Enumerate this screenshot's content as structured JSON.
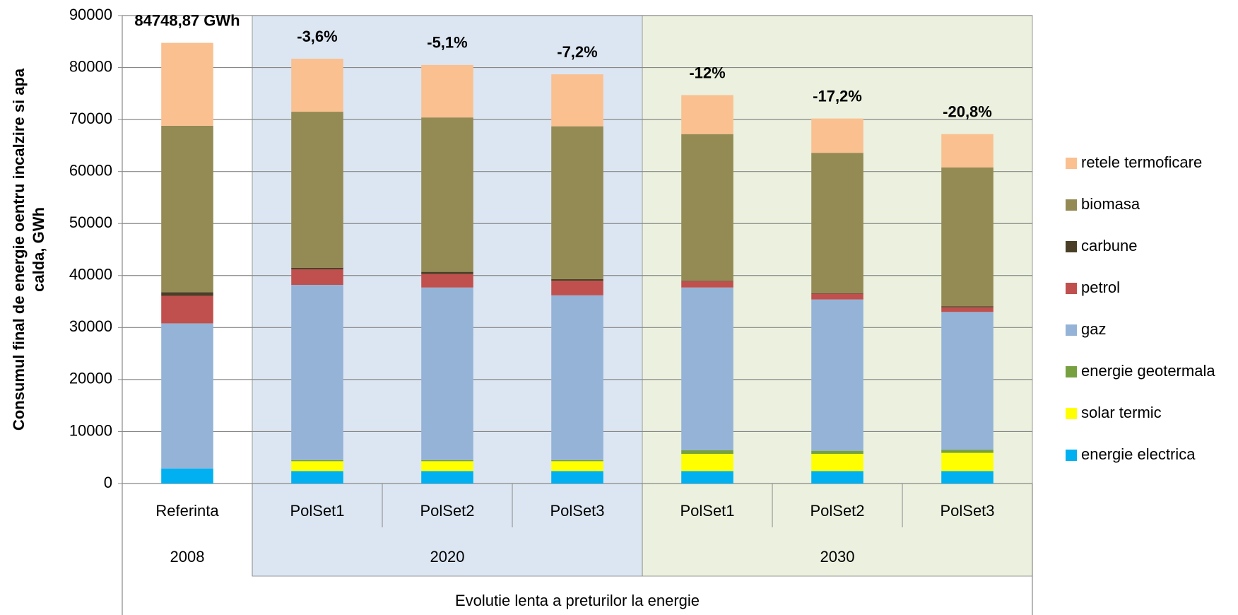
{
  "chart_data": {
    "type": "stacked_bar",
    "ylabel": [
      "Consumul final de energie oentru incalzire si apa",
      "calda, GWh"
    ],
    "xlabel": "Evolutie lenta a preturilor la energie",
    "categories": [
      "Referinta",
      "PolSet1",
      "PolSet2",
      "PolSet3",
      "PolSet1",
      "PolSet2",
      "PolSet3"
    ],
    "groups": [
      {
        "label": "2008",
        "size": 1,
        "color": "#ffffff"
      },
      {
        "label": "2020",
        "size": 3,
        "color": "#dce6f2"
      },
      {
        "label": "2030",
        "size": 3,
        "color": "#ebf1de"
      }
    ],
    "bar_labels": [
      "84748,87 GWh",
      "-3,6%",
      "-5,1%",
      "-7,2%",
      "-12%",
      "-17,2%",
      "-20,8%"
    ],
    "series": [
      {
        "name": "energie electrica",
        "color": "#00b0f0",
        "values": [
          2900,
          2400,
          2400,
          2400,
          2400,
          2400,
          2400
        ]
      },
      {
        "name": "solar termic",
        "color": "#ffff00",
        "values": [
          0,
          1900,
          1900,
          1900,
          3300,
          3300,
          3500
        ]
      },
      {
        "name": "energie geotermala",
        "color": "#77a040",
        "values": [
          0,
          200,
          200,
          200,
          700,
          600,
          600
        ]
      },
      {
        "name": "gaz",
        "color": "#95b3d7",
        "values": [
          27900,
          33700,
          33200,
          31700,
          31300,
          29100,
          26500
        ]
      },
      {
        "name": "petrol",
        "color": "#c0504d",
        "values": [
          5300,
          3000,
          2600,
          2800,
          1200,
          1100,
          900
        ]
      },
      {
        "name": "carbune",
        "color": "#4a3f26",
        "values": [
          700,
          300,
          400,
          300,
          100,
          100,
          200
        ]
      },
      {
        "name": "biomasa",
        "color": "#948a54",
        "values": [
          32000,
          30000,
          29700,
          29400,
          28200,
          27000,
          26700
        ]
      },
      {
        "name": "retele termoficare",
        "color": "#fac090",
        "values": [
          15949,
          10200,
          10100,
          10000,
          7500,
          6600,
          6400
        ]
      }
    ],
    "ylim": [
      0,
      90000
    ],
    "yticks": [
      0,
      10000,
      20000,
      30000,
      40000,
      50000,
      60000,
      70000,
      80000,
      90000
    ],
    "grid": true
  }
}
